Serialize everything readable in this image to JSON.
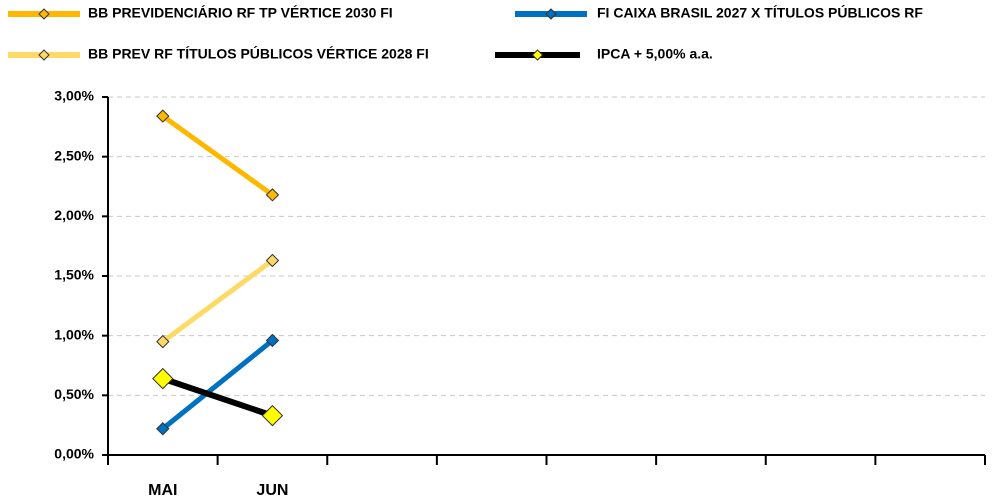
{
  "chart_data": {
    "type": "line",
    "categories": [
      "MAI",
      "JUN",
      null,
      null,
      null,
      null,
      null,
      null
    ],
    "series": [
      {
        "name": "BB PREVIDENCIÁRIO RF TP VÉRTICE 2030 FI",
        "color": "#ffb800",
        "marker_color": "#ffb800",
        "values": [
          2.84,
          2.18,
          null,
          null,
          null,
          null,
          null,
          null
        ]
      },
      {
        "name": "FI CAIXA BRASIL 2027 X TÍTULOS PÚBLICOS RF",
        "color": "#0070c0",
        "marker_color": "#0070c0",
        "values": [
          0.22,
          0.96,
          null,
          null,
          null,
          null,
          null,
          null
        ]
      },
      {
        "name": "BB PREV RF TÍTULOS PÚBLICOS VÉRTICE 2028 FI",
        "color": "#ffd966",
        "marker_color": "#ffd966",
        "values": [
          0.95,
          1.63,
          null,
          null,
          null,
          null,
          null,
          null
        ]
      },
      {
        "name": "IPCA + 5,00% a.a.",
        "color": "#000000",
        "marker_color": "#ffff00",
        "values": [
          0.64,
          0.33,
          null,
          null,
          null,
          null,
          null,
          null
        ]
      }
    ],
    "ylim": [
      0,
      3
    ],
    "yticks": [
      {
        "value": 0,
        "label": "0,00%"
      },
      {
        "value": 0.5,
        "label": "0,50%"
      },
      {
        "value": 1,
        "label": "1,00%"
      },
      {
        "value": 1.5,
        "label": "1,50%"
      },
      {
        "value": 2,
        "label": "2,00%"
      },
      {
        "value": 2.5,
        "label": "2,50%"
      },
      {
        "value": 3,
        "label": "3,00%"
      }
    ],
    "grid": true
  }
}
